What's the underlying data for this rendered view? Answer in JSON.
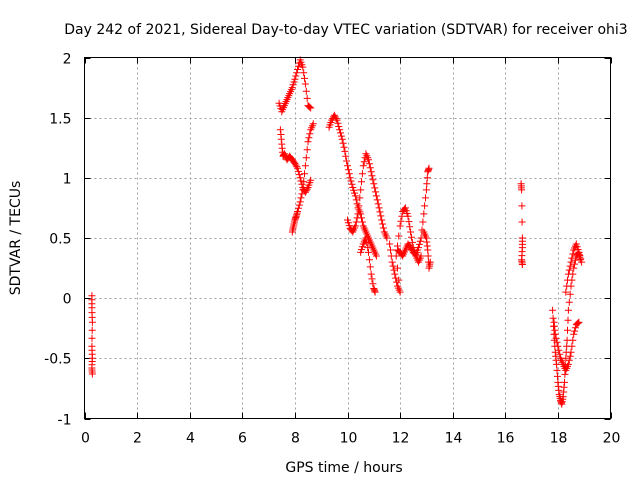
{
  "chart_data": {
    "type": "scatter",
    "title": "Day 242 of 2021, Sidereal Day-to-day VTEC variation (SDTVAR) for receiver ohi3",
    "xlabel": "GPS time / hours",
    "ylabel": "SDTVAR / TECUs",
    "xlim": [
      0,
      20
    ],
    "ylim": [
      -1,
      2
    ],
    "x_ticks": [
      0,
      2,
      4,
      6,
      8,
      10,
      12,
      14,
      16,
      18,
      20
    ],
    "x_tick_labels": [
      "0",
      "2",
      "4",
      "6",
      "8",
      "10",
      "12",
      "14",
      "16",
      "18",
      "20"
    ],
    "y_ticks": [
      -1,
      -0.5,
      0,
      0.5,
      1,
      1.5,
      2
    ],
    "y_tick_labels": [
      "-1",
      "-0.5",
      "0",
      "0.5",
      "1",
      "1.5",
      "2"
    ],
    "grid": true,
    "marker": "plus",
    "color": "#ff0000",
    "series": [
      {
        "name": "SDTVAR",
        "segments": [
          [
            [
              0.28,
              0.02
            ],
            [
              0.28,
              -0.08
            ],
            [
              0.3,
              -0.2
            ],
            [
              0.28,
              -0.4
            ],
            [
              0.3,
              -0.5
            ],
            [
              0.28,
              -0.58
            ],
            [
              0.3,
              -0.63
            ]
          ],
          [
            [
              7.4,
              1.62
            ],
            [
              7.5,
              1.55
            ],
            [
              7.6,
              1.6
            ],
            [
              7.7,
              1.65
            ],
            [
              7.8,
              1.7
            ],
            [
              7.9,
              1.75
            ],
            [
              8.0,
              1.82
            ],
            [
              8.1,
              1.9
            ],
            [
              8.2,
              1.98
            ],
            [
              8.3,
              1.92
            ],
            [
              8.4,
              1.78
            ],
            [
              8.5,
              1.6
            ],
            [
              8.6,
              1.58
            ]
          ],
          [
            [
              7.45,
              1.4
            ],
            [
              7.5,
              1.28
            ],
            [
              7.55,
              1.18
            ],
            [
              7.6,
              1.2
            ],
            [
              7.7,
              1.15
            ],
            [
              7.8,
              1.18
            ],
            [
              7.9,
              1.15
            ],
            [
              8.0,
              1.12
            ],
            [
              8.1,
              1.08
            ],
            [
              8.2,
              1.0
            ],
            [
              8.3,
              0.92
            ],
            [
              8.4,
              0.88
            ],
            [
              8.5,
              0.92
            ],
            [
              8.6,
              0.98
            ]
          ],
          [
            [
              7.9,
              0.55
            ],
            [
              7.95,
              0.6
            ],
            [
              8.0,
              0.65
            ],
            [
              8.05,
              0.68
            ],
            [
              8.1,
              0.72
            ],
            [
              8.2,
              0.8
            ],
            [
              8.3,
              0.9
            ],
            [
              8.4,
              1.1
            ],
            [
              8.5,
              1.3
            ],
            [
              8.6,
              1.4
            ],
            [
              8.7,
              1.45
            ]
          ],
          [
            [
              9.3,
              1.42
            ],
            [
              9.4,
              1.48
            ],
            [
              9.5,
              1.52
            ],
            [
              9.6,
              1.48
            ],
            [
              9.7,
              1.4
            ],
            [
              9.8,
              1.32
            ],
            [
              9.9,
              1.22
            ],
            [
              10.0,
              1.1
            ],
            [
              10.1,
              1.0
            ],
            [
              10.2,
              0.92
            ],
            [
              10.3,
              0.85
            ],
            [
              10.4,
              0.75
            ],
            [
              10.5,
              0.7
            ],
            [
              10.6,
              0.6
            ],
            [
              10.7,
              0.55
            ],
            [
              10.8,
              0.5
            ],
            [
              10.9,
              0.45
            ],
            [
              11.0,
              0.4
            ],
            [
              11.1,
              0.35
            ]
          ],
          [
            [
              10.0,
              0.65
            ],
            [
              10.1,
              0.58
            ],
            [
              10.2,
              0.55
            ],
            [
              10.3,
              0.6
            ],
            [
              10.4,
              0.7
            ],
            [
              10.5,
              0.9
            ],
            [
              10.6,
              1.1
            ],
            [
              10.7,
              1.2
            ],
            [
              10.8,
              1.15
            ],
            [
              10.9,
              1.05
            ],
            [
              11.0,
              0.95
            ],
            [
              11.1,
              0.85
            ],
            [
              11.2,
              0.75
            ],
            [
              11.3,
              0.65
            ],
            [
              11.4,
              0.55
            ],
            [
              11.5,
              0.5
            ]
          ],
          [
            [
              10.5,
              0.38
            ],
            [
              10.6,
              0.45
            ],
            [
              10.7,
              0.5
            ],
            [
              10.8,
              0.38
            ],
            [
              10.9,
              0.2
            ],
            [
              11.0,
              0.08
            ],
            [
              11.05,
              0.05
            ]
          ],
          [
            [
              11.6,
              0.45
            ],
            [
              11.7,
              0.3
            ],
            [
              11.8,
              0.2
            ],
            [
              11.9,
              0.1
            ],
            [
              12.0,
              0.05
            ],
            [
              11.85,
              0.35
            ],
            [
              12.0,
              0.6
            ],
            [
              12.1,
              0.72
            ],
            [
              12.2,
              0.75
            ],
            [
              12.3,
              0.68
            ],
            [
              12.4,
              0.55
            ],
            [
              12.5,
              0.42
            ],
            [
              12.6,
              0.35
            ],
            [
              12.7,
              0.3
            ],
            [
              12.8,
              0.35
            ]
          ],
          [
            [
              11.9,
              0.4
            ],
            [
              12.0,
              0.38
            ],
            [
              12.1,
              0.35
            ],
            [
              12.2,
              0.4
            ],
            [
              12.3,
              0.45
            ],
            [
              12.4,
              0.42
            ],
            [
              12.5,
              0.38
            ],
            [
              12.6,
              0.36
            ],
            [
              12.7,
              0.42
            ],
            [
              12.8,
              0.5
            ],
            [
              12.9,
              0.7
            ],
            [
              13.0,
              0.9
            ],
            [
              13.05,
              1.05
            ],
            [
              13.1,
              1.08
            ]
          ],
          [
            [
              12.9,
              0.55
            ],
            [
              13.0,
              0.5
            ],
            [
              13.05,
              0.4
            ],
            [
              13.1,
              0.25
            ],
            [
              13.15,
              0.3
            ]
          ],
          [
            [
              16.6,
              0.95
            ],
            [
              16.62,
              0.9
            ],
            [
              16.65,
              0.5
            ],
            [
              16.65,
              0.42
            ],
            [
              16.62,
              0.32
            ],
            [
              16.65,
              0.28
            ]
          ],
          [
            [
              17.8,
              -0.1
            ],
            [
              17.85,
              -0.3
            ],
            [
              17.9,
              -0.45
            ],
            [
              17.95,
              -0.55
            ],
            [
              18.0,
              -0.7
            ],
            [
              18.05,
              -0.8
            ],
            [
              18.1,
              -0.85
            ],
            [
              18.15,
              -0.88
            ],
            [
              18.2,
              -0.82
            ],
            [
              18.25,
              -0.7
            ],
            [
              18.3,
              -0.5
            ],
            [
              18.35,
              -0.35
            ],
            [
              18.4,
              -0.1
            ],
            [
              18.5,
              0.1
            ],
            [
              18.6,
              0.25
            ],
            [
              18.7,
              0.35
            ],
            [
              18.8,
              0.38
            ],
            [
              18.85,
              0.32
            ]
          ],
          [
            [
              17.85,
              -0.2
            ],
            [
              17.9,
              -0.3
            ],
            [
              18.0,
              -0.4
            ],
            [
              18.1,
              -0.5
            ],
            [
              18.2,
              -0.55
            ],
            [
              18.3,
              -0.6
            ],
            [
              18.4,
              -0.55
            ],
            [
              18.5,
              -0.45
            ],
            [
              18.6,
              -0.3
            ],
            [
              18.7,
              -0.22
            ],
            [
              18.8,
              -0.2
            ]
          ],
          [
            [
              18.3,
              0.05
            ],
            [
              18.4,
              0.2
            ],
            [
              18.5,
              0.3
            ],
            [
              18.6,
              0.4
            ],
            [
              18.7,
              0.45
            ],
            [
              18.8,
              0.38
            ],
            [
              18.9,
              0.3
            ]
          ]
        ]
      }
    ]
  }
}
